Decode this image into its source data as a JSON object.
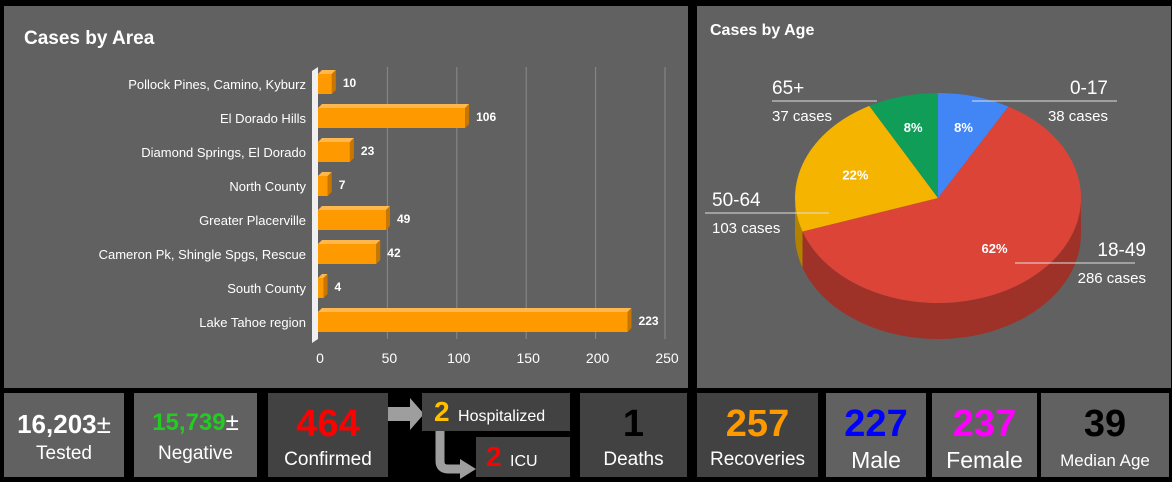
{
  "area": {
    "title": "Cases by Area",
    "chart_data": {
      "type": "bar",
      "orientation": "horizontal",
      "title": "Cases by Area",
      "categories": [
        "Pollock Pines, Camino, Kyburz",
        "El Dorado Hills",
        "Diamond Springs, El Dorado",
        "North County",
        "Greater Placerville",
        "Cameron Pk, Shingle Spgs, Rescue",
        "South County",
        "Lake Tahoe region"
      ],
      "values": [
        10,
        106,
        23,
        7,
        49,
        42,
        4,
        223
      ],
      "xlim": [
        0,
        250
      ],
      "xticks": [
        0,
        50,
        100,
        150,
        200,
        250
      ],
      "color": "#FF9900"
    }
  },
  "age": {
    "title": "Cases by Age",
    "chart_data": {
      "type": "pie",
      "title": "Cases by Age",
      "slices": [
        {
          "label": "0-17",
          "cases": 38,
          "cases_text": "38 cases",
          "percent": 8,
          "percent_text": "8%",
          "color": "#4285F4"
        },
        {
          "label": "18-49",
          "cases": 286,
          "cases_text": "286 cases",
          "percent": 62,
          "percent_text": "62%",
          "color": "#DB4437"
        },
        {
          "label": "50-64",
          "cases": 103,
          "cases_text": "103 cases",
          "percent": 22,
          "percent_text": "22%",
          "color": "#F4B400"
        },
        {
          "label": "65+",
          "cases": 37,
          "cases_text": "37 cases",
          "percent": 8,
          "percent_text": "8%",
          "color": "#0F9D58"
        }
      ]
    }
  },
  "stats": {
    "tested": {
      "value": "16,203",
      "suffix": "±",
      "label": "Tested",
      "color": "#FFFFFF"
    },
    "negative": {
      "value": "15,739",
      "suffix": "±",
      "label": "Negative",
      "color": "#22CC22"
    },
    "confirmed": {
      "value": "464",
      "label": "Confirmed",
      "color": "#FF0000"
    },
    "hospitalized": {
      "value": "2",
      "label": "Hospitalized",
      "color": "#FFC000"
    },
    "icu": {
      "value": "2",
      "label": "ICU",
      "color": "#FF0000"
    },
    "deaths": {
      "value": "1",
      "label": "Deaths",
      "color": "#000000"
    },
    "recoveries": {
      "value": "257",
      "label": "Recoveries",
      "color": "#FF9900"
    },
    "male": {
      "value": "227",
      "label": "Male",
      "color": "#0000FF"
    },
    "female": {
      "value": "237",
      "label": "Female",
      "color": "#FF00FF"
    },
    "median_age": {
      "value": "39",
      "label": "Median Age",
      "color": "#000000"
    }
  }
}
